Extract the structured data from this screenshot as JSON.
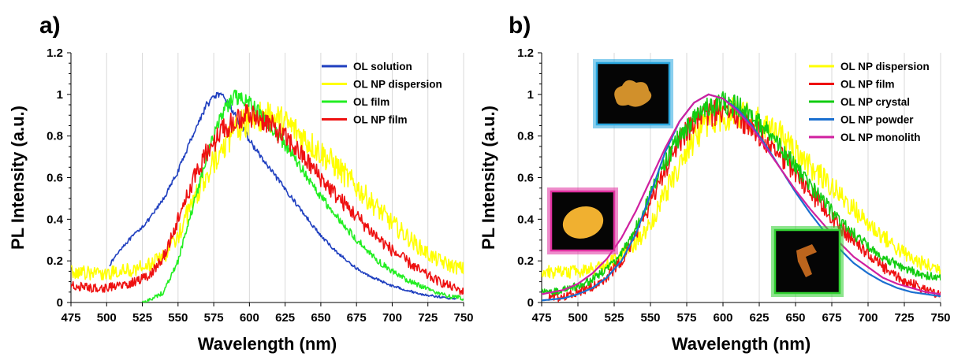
{
  "chart_data": [
    {
      "type": "line",
      "panel_label": "a)",
      "xlabel": "Wavelength (nm)",
      "ylabel": "PL Intensity (a.u.)",
      "xlim": [
        475,
        750
      ],
      "ylim": [
        0,
        1.2
      ],
      "xticks": [
        "475",
        "500",
        "525",
        "550",
        "575",
        "600",
        "625",
        "650",
        "675",
        "700",
        "725",
        "750"
      ],
      "yticks": [
        "0",
        "0.2",
        "0.4",
        "0.6",
        "0.8",
        "1",
        "1.2"
      ],
      "grid": "vertical",
      "legend_position": "top-right",
      "series": [
        {
          "name": "OL solution",
          "color": "#1f3fbf",
          "noise": 0.012,
          "points": [
            [
              502,
              0.18
            ],
            [
              510,
              0.26
            ],
            [
              520,
              0.33
            ],
            [
              530,
              0.4
            ],
            [
              540,
              0.5
            ],
            [
              550,
              0.63
            ],
            [
              560,
              0.8
            ],
            [
              570,
              0.95
            ],
            [
              577,
              1.0
            ],
            [
              583,
              0.98
            ],
            [
              590,
              0.9
            ],
            [
              600,
              0.78
            ],
            [
              610,
              0.68
            ],
            [
              620,
              0.59
            ],
            [
              630,
              0.5
            ],
            [
              640,
              0.41
            ],
            [
              650,
              0.32
            ],
            [
              660,
              0.25
            ],
            [
              670,
              0.19
            ],
            [
              680,
              0.14
            ],
            [
              690,
              0.11
            ],
            [
              700,
              0.08
            ],
            [
              710,
              0.06
            ],
            [
              720,
              0.04
            ],
            [
              730,
              0.03
            ],
            [
              740,
              0.02
            ],
            [
              745,
              0.02
            ]
          ]
        },
        {
          "name": "OL NP dispersion",
          "color": "#ffff00",
          "noise": 0.06,
          "points": [
            [
              475,
              0.15
            ],
            [
              490,
              0.14
            ],
            [
              500,
              0.14
            ],
            [
              510,
              0.15
            ],
            [
              520,
              0.16
            ],
            [
              530,
              0.18
            ],
            [
              540,
              0.22
            ],
            [
              550,
              0.32
            ],
            [
              560,
              0.48
            ],
            [
              570,
              0.62
            ],
            [
              580,
              0.74
            ],
            [
              590,
              0.83
            ],
            [
              600,
              0.88
            ],
            [
              610,
              0.9
            ],
            [
              620,
              0.88
            ],
            [
              630,
              0.84
            ],
            [
              640,
              0.78
            ],
            [
              650,
              0.72
            ],
            [
              660,
              0.66
            ],
            [
              670,
              0.59
            ],
            [
              680,
              0.52
            ],
            [
              690,
              0.45
            ],
            [
              700,
              0.38
            ],
            [
              710,
              0.32
            ],
            [
              720,
              0.26
            ],
            [
              730,
              0.21
            ],
            [
              740,
              0.18
            ],
            [
              750,
              0.16
            ]
          ]
        },
        {
          "name": "OL film",
          "color": "#22ee22",
          "noise": 0.025,
          "points": [
            [
              525,
              0.0
            ],
            [
              530,
              0.01
            ],
            [
              540,
              0.05
            ],
            [
              550,
              0.2
            ],
            [
              560,
              0.45
            ],
            [
              570,
              0.7
            ],
            [
              580,
              0.9
            ],
            [
              590,
              0.99
            ],
            [
              600,
              0.96
            ],
            [
              610,
              0.89
            ],
            [
              620,
              0.8
            ],
            [
              630,
              0.71
            ],
            [
              640,
              0.61
            ],
            [
              650,
              0.51
            ],
            [
              660,
              0.42
            ],
            [
              670,
              0.34
            ],
            [
              680,
              0.27
            ],
            [
              690,
              0.2
            ],
            [
              700,
              0.15
            ],
            [
              710,
              0.11
            ],
            [
              720,
              0.08
            ],
            [
              730,
              0.05
            ],
            [
              740,
              0.03
            ],
            [
              750,
              0.02
            ]
          ]
        },
        {
          "name": "OL NP film",
          "color": "#ee1111",
          "noise": 0.045,
          "points": [
            [
              475,
              0.08
            ],
            [
              490,
              0.07
            ],
            [
              500,
              0.07
            ],
            [
              510,
              0.08
            ],
            [
              520,
              0.1
            ],
            [
              530,
              0.13
            ],
            [
              540,
              0.22
            ],
            [
              550,
              0.4
            ],
            [
              560,
              0.58
            ],
            [
              570,
              0.72
            ],
            [
              580,
              0.82
            ],
            [
              590,
              0.88
            ],
            [
              600,
              0.9
            ],
            [
              610,
              0.88
            ],
            [
              620,
              0.82
            ],
            [
              630,
              0.76
            ],
            [
              640,
              0.68
            ],
            [
              650,
              0.6
            ],
            [
              660,
              0.52
            ],
            [
              670,
              0.45
            ],
            [
              680,
              0.38
            ],
            [
              690,
              0.31
            ],
            [
              700,
              0.25
            ],
            [
              710,
              0.2
            ],
            [
              720,
              0.15
            ],
            [
              730,
              0.11
            ],
            [
              740,
              0.08
            ],
            [
              750,
              0.05
            ]
          ]
        }
      ]
    },
    {
      "type": "line",
      "panel_label": "b)",
      "xlabel": "Wavelength (nm)",
      "ylabel": "PL Intensity (a.u.)",
      "xlim": [
        475,
        750
      ],
      "ylim": [
        0,
        1.2
      ],
      "xticks": [
        "475",
        "500",
        "525",
        "550",
        "575",
        "600",
        "625",
        "650",
        "675",
        "700",
        "725",
        "750"
      ],
      "yticks": [
        "0",
        "0.2",
        "0.4",
        "0.6",
        "0.8",
        "1",
        "1.2"
      ],
      "grid": "vertical",
      "legend_position": "top-right",
      "insets": [
        {
          "name": "powder photo",
          "border": "#2aa8e0",
          "fill": "#e8a030"
        },
        {
          "name": "monolith photo",
          "border": "#e030a0",
          "fill": "#f0b030"
        },
        {
          "name": "crystal photo",
          "border": "#30d030",
          "fill": "#d07020"
        }
      ],
      "series": [
        {
          "name": "OL NP dispersion",
          "color": "#ffff00",
          "noise": 0.06,
          "points": [
            [
              475,
              0.15
            ],
            [
              490,
              0.14
            ],
            [
              500,
              0.15
            ],
            [
              510,
              0.16
            ],
            [
              520,
              0.18
            ],
            [
              530,
              0.22
            ],
            [
              540,
              0.28
            ],
            [
              550,
              0.38
            ],
            [
              560,
              0.52
            ],
            [
              570,
              0.66
            ],
            [
              580,
              0.78
            ],
            [
              590,
              0.86
            ],
            [
              600,
              0.9
            ],
            [
              610,
              0.91
            ],
            [
              620,
              0.89
            ],
            [
              630,
              0.85
            ],
            [
              640,
              0.8
            ],
            [
              650,
              0.73
            ],
            [
              660,
              0.66
            ],
            [
              670,
              0.59
            ],
            [
              680,
              0.52
            ],
            [
              690,
              0.45
            ],
            [
              700,
              0.38
            ],
            [
              710,
              0.32
            ],
            [
              720,
              0.26
            ],
            [
              730,
              0.21
            ],
            [
              740,
              0.18
            ],
            [
              750,
              0.16
            ]
          ]
        },
        {
          "name": "OL NP film",
          "color": "#ee1111",
          "noise": 0.05,
          "points": [
            [
              480,
              0.02
            ],
            [
              490,
              0.03
            ],
            [
              500,
              0.05
            ],
            [
              510,
              0.08
            ],
            [
              520,
              0.12
            ],
            [
              530,
              0.2
            ],
            [
              540,
              0.32
            ],
            [
              550,
              0.48
            ],
            [
              560,
              0.64
            ],
            [
              570,
              0.77
            ],
            [
              580,
              0.86
            ],
            [
              590,
              0.91
            ],
            [
              600,
              0.92
            ],
            [
              610,
              0.89
            ],
            [
              620,
              0.84
            ],
            [
              630,
              0.77
            ],
            [
              640,
              0.7
            ],
            [
              650,
              0.62
            ],
            [
              660,
              0.53
            ],
            [
              670,
              0.45
            ],
            [
              680,
              0.37
            ],
            [
              690,
              0.3
            ],
            [
              700,
              0.23
            ],
            [
              710,
              0.17
            ],
            [
              720,
              0.12
            ],
            [
              730,
              0.09
            ],
            [
              740,
              0.06
            ],
            [
              750,
              0.04
            ]
          ]
        },
        {
          "name": "OL NP crystal",
          "color": "#11cc11",
          "noise": 0.04,
          "points": [
            [
              475,
              0.05
            ],
            [
              490,
              0.06
            ],
            [
              500,
              0.08
            ],
            [
              510,
              0.11
            ],
            [
              520,
              0.16
            ],
            [
              530,
              0.24
            ],
            [
              540,
              0.36
            ],
            [
              550,
              0.52
            ],
            [
              560,
              0.67
            ],
            [
              570,
              0.8
            ],
            [
              580,
              0.89
            ],
            [
              590,
              0.94
            ],
            [
              600,
              0.96
            ],
            [
              610,
              0.94
            ],
            [
              620,
              0.89
            ],
            [
              630,
              0.82
            ],
            [
              640,
              0.74
            ],
            [
              650,
              0.65
            ],
            [
              660,
              0.56
            ],
            [
              670,
              0.48
            ],
            [
              680,
              0.4
            ],
            [
              690,
              0.33
            ],
            [
              700,
              0.27
            ],
            [
              710,
              0.22
            ],
            [
              720,
              0.18
            ],
            [
              730,
              0.15
            ],
            [
              740,
              0.13
            ],
            [
              750,
              0.12
            ]
          ]
        },
        {
          "name": "OL NP powder",
          "color": "#1a6fd0",
          "noise": 0.0,
          "points": [
            [
              475,
              0.01
            ],
            [
              490,
              0.02
            ],
            [
              500,
              0.04
            ],
            [
              510,
              0.07
            ],
            [
              520,
              0.12
            ],
            [
              530,
              0.2
            ],
            [
              540,
              0.33
            ],
            [
              550,
              0.52
            ],
            [
              560,
              0.72
            ],
            [
              570,
              0.87
            ],
            [
              580,
              0.96
            ],
            [
              590,
              1.0
            ],
            [
              600,
              0.98
            ],
            [
              610,
              0.93
            ],
            [
              620,
              0.85
            ],
            [
              630,
              0.75
            ],
            [
              640,
              0.64
            ],
            [
              650,
              0.53
            ],
            [
              660,
              0.43
            ],
            [
              670,
              0.34
            ],
            [
              680,
              0.26
            ],
            [
              690,
              0.19
            ],
            [
              700,
              0.14
            ],
            [
              710,
              0.1
            ],
            [
              720,
              0.07
            ],
            [
              730,
              0.05
            ],
            [
              740,
              0.04
            ],
            [
              750,
              0.03
            ]
          ]
        },
        {
          "name": "OL NP monolith",
          "color": "#d020a0",
          "noise": 0.0,
          "points": [
            [
              475,
              0.04
            ],
            [
              490,
              0.06
            ],
            [
              500,
              0.09
            ],
            [
              510,
              0.14
            ],
            [
              520,
              0.21
            ],
            [
              530,
              0.31
            ],
            [
              540,
              0.44
            ],
            [
              550,
              0.59
            ],
            [
              560,
              0.74
            ],
            [
              570,
              0.87
            ],
            [
              580,
              0.96
            ],
            [
              590,
              1.0
            ],
            [
              600,
              0.98
            ],
            [
              610,
              0.92
            ],
            [
              620,
              0.84
            ],
            [
              630,
              0.74
            ],
            [
              640,
              0.64
            ],
            [
              650,
              0.54
            ],
            [
              660,
              0.45
            ],
            [
              670,
              0.37
            ],
            [
              680,
              0.29
            ],
            [
              690,
              0.22
            ],
            [
              700,
              0.17
            ],
            [
              710,
              0.12
            ],
            [
              720,
              0.09
            ],
            [
              730,
              0.07
            ],
            [
              740,
              0.05
            ],
            [
              750,
              0.04
            ]
          ]
        }
      ]
    }
  ]
}
